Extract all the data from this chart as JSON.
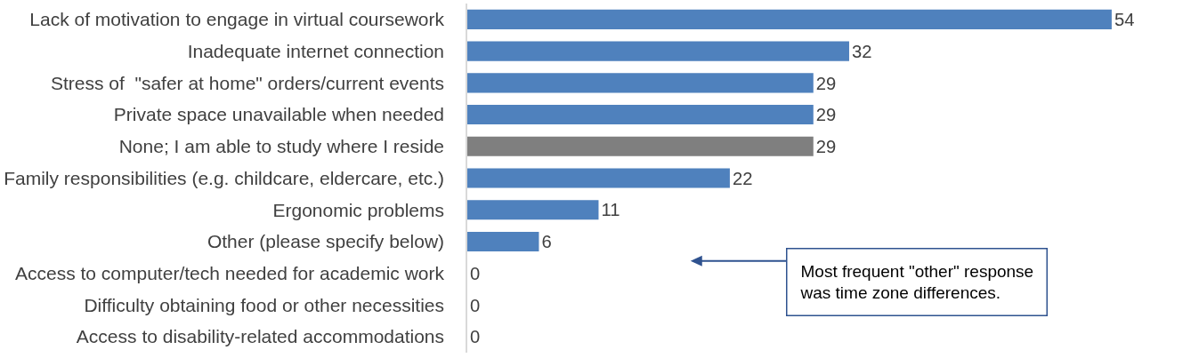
{
  "chart_data": {
    "type": "bar",
    "orientation": "horizontal",
    "categories": [
      "Lack of motivation to engage in virtual coursework",
      "Inadequate internet connection",
      "Stress of  \"safer at home\" orders/current events",
      "Private space unavailable when needed",
      "None; I am able to study where I reside",
      "Family responsibilities (e.g. childcare, eldercare, etc.)",
      "Ergonomic problems",
      "Other (please specify below)",
      "Access to computer/tech needed for academic work",
      "Difficulty obtaining food or other necessities",
      "Access to disability-related accommodations"
    ],
    "values": [
      54,
      32,
      29,
      29,
      29,
      22,
      11,
      6,
      0,
      0,
      0
    ],
    "colors": [
      "#4f81bd",
      "#4f81bd",
      "#4f81bd",
      "#4f81bd",
      "#7f7f7f",
      "#4f81bd",
      "#4f81bd",
      "#4f81bd",
      "#4f81bd",
      "#4f81bd",
      "#4f81bd"
    ],
    "data_labels": true,
    "annotations": [
      "Most frequent \"other\" response\nwas time zone differences."
    ]
  }
}
